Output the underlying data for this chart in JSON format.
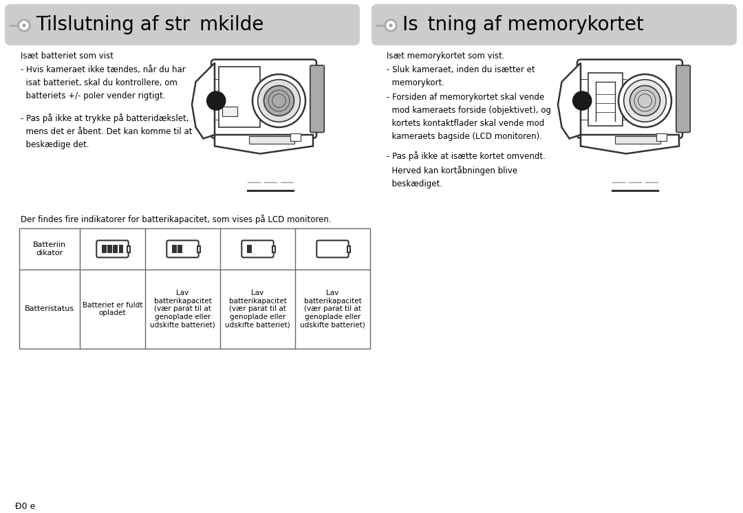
{
  "bg_color": "#ffffff",
  "header_bg": "#cccccc",
  "header_text_color": "#000000",
  "body_text_color": "#000000",
  "left_title": "Tilslutning af str mkilde",
  "right_title": "Is tning af memorykortet",
  "left_subtitle": "Isæt batteriet som vist",
  "right_subtitle": "Isæt memorykortet som vist.",
  "left_bullets": [
    "- Hvis kameraet ikke tændes, når du har\n  isat batteriet, skal du kontrollere, om\n  batteriets +/- poler vender rigtigt.",
    "- Pas på ikke at trykke på batteridækslet,\n  mens det er åbent. Det kan komme til at\n  beskædige det."
  ],
  "right_bullets": [
    "- Sluk kameraet, inden du isætter et\n  memorykort.",
    "- Forsiden af memorykortet skal vende\n  mod kameraets forside (objektivet), og\n  kortets kontaktflader skal vende mod\n  kameraets bagside (LCD monitoren).",
    "- Pas på ikke at isætte kortet omvendt.\n  Herved kan kortåbningen blive\n  beskædiget."
  ],
  "table_note": "Der findes fire indikatorer for batterikapacitet, som vises på LCD monitoren.",
  "table_col1_row1": "Batteriin\ndikator",
  "table_col1_row2": "Batteristatus",
  "table_col2_row2": "Batteriet er fuldt\nopladet",
  "table_col3_row2": "Lav\nbatterikapacitet\n(vær parat til at\ngenoplade eller\nudskifte batteriet)",
  "table_col4_row2": "Lav\nbatterikapacitet\n(vær parat til at\ngenoplade eller\nudskifte batteriet)",
  "table_col5_row2": "Lav\nbatterikapacitet\n(vær parat til at\ngenoplade eller\nudskifte batteriet)",
  "footer_text": "Ð0 e",
  "title_fontsize": 20,
  "body_fontsize": 9.5,
  "small_fontsize": 8.5
}
